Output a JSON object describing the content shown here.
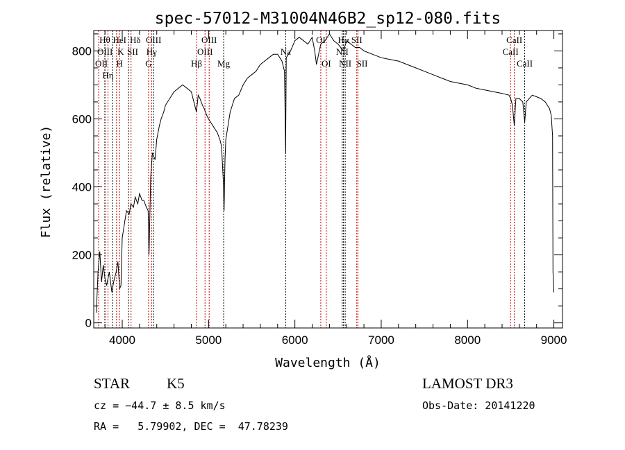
{
  "chart_data": {
    "type": "line",
    "title": "spec-57012-M31004N46B2_sp12-080.fits",
    "xlabel": "Wavelength (Å)",
    "ylabel": "Flux (relative)",
    "xlim": [
      3670,
      9100
    ],
    "ylim": [
      -15,
      860
    ],
    "xticks": [
      4000,
      5000,
      6000,
      7000,
      8000,
      9000
    ],
    "yticks": [
      0,
      200,
      400,
      600,
      800
    ],
    "grid": false,
    "series": [
      {
        "name": "flux",
        "x": [
          3700,
          3720,
          3740,
          3760,
          3780,
          3800,
          3820,
          3850,
          3880,
          3900,
          3930,
          3950,
          3970,
          3985,
          4000,
          4030,
          4050,
          4080,
          4100,
          4130,
          4150,
          4180,
          4200,
          4230,
          4250,
          4280,
          4300,
          4310,
          4330,
          4350,
          4380,
          4400,
          4430,
          4450,
          4480,
          4500,
          4550,
          4600,
          4650,
          4700,
          4750,
          4800,
          4830,
          4860,
          4880,
          4900,
          4930,
          4950,
          4980,
          5000,
          5050,
          5100,
          5130,
          5150,
          5170,
          5180,
          5190,
          5200,
          5250,
          5300,
          5350,
          5400,
          5450,
          5500,
          5550,
          5600,
          5650,
          5700,
          5750,
          5800,
          5850,
          5880,
          5893,
          5900,
          5950,
          6000,
          6050,
          6100,
          6150,
          6200,
          6230,
          6250,
          6300,
          6350,
          6400,
          6450,
          6500,
          6563,
          6600,
          6650,
          6700,
          6750,
          6800,
          6900,
          7000,
          7100,
          7200,
          7300,
          7400,
          7500,
          7600,
          7700,
          7800,
          7900,
          8000,
          8100,
          8200,
          8300,
          8400,
          8480,
          8500,
          8520,
          8542,
          8560,
          8600,
          8640,
          8662,
          8680,
          8750,
          8800,
          8850,
          8900,
          8950,
          8970,
          8985,
          8990,
          9000
        ],
        "y": [
          30,
          150,
          210,
          120,
          170,
          130,
          110,
          150,
          90,
          120,
          150,
          180,
          100,
          110,
          250,
          300,
          330,
          320,
          350,
          340,
          370,
          350,
          380,
          360,
          360,
          340,
          330,
          200,
          430,
          500,
          480,
          540,
          580,
          600,
          620,
          640,
          660,
          680,
          690,
          700,
          690,
          680,
          650,
          620,
          670,
          660,
          640,
          630,
          610,
          600,
          580,
          560,
          540,
          520,
          420,
          330,
          480,
          540,
          620,
          660,
          670,
          700,
          720,
          730,
          740,
          760,
          770,
          780,
          790,
          790,
          770,
          740,
          500,
          780,
          800,
          830,
          840,
          830,
          820,
          840,
          800,
          760,
          820,
          830,
          850,
          830,
          820,
          800,
          830,
          820,
          810,
          810,
          800,
          790,
          780,
          775,
          770,
          760,
          750,
          740,
          730,
          720,
          710,
          705,
          700,
          690,
          685,
          680,
          675,
          670,
          660,
          640,
          580,
          660,
          660,
          650,
          590,
          650,
          670,
          665,
          660,
          650,
          630,
          610,
          550,
          150,
          90
        ]
      }
    ],
    "line_markers": [
      {
        "label": "OII",
        "wave": 3727,
        "color": "#cc0000",
        "row": 3
      },
      {
        "label": "Hθ",
        "wave": 3798,
        "color": "#cc0000",
        "row": 1
      },
      {
        "label": "OIII",
        "wave": 3800,
        "color": "#000000",
        "row": 3
      },
      {
        "label": "Hη",
        "wave": 3835,
        "color": "#cc0000",
        "row": 3
      },
      {
        "label": "HeI",
        "wave": 3889,
        "color": "#000000",
        "row": 2
      },
      {
        "label": "K",
        "wave": 3934,
        "color": "#cc0000",
        "row": 1
      },
      {
        "label": "H",
        "wave": 3969,
        "color": "#cc0000",
        "row": 3
      },
      {
        "label": "SII",
        "wave": 4072,
        "color": "#000000",
        "row": 2
      },
      {
        "label": "Hδ",
        "wave": 4102,
        "color": "#cc0000",
        "row": 1
      },
      {
        "label": "G",
        "wave": 4305,
        "color": "#cc0000",
        "row": 3
      },
      {
        "label": "Hγ",
        "wave": 4340,
        "color": "#cc0000",
        "row": 2
      },
      {
        "label": "OIII",
        "wave": 4363,
        "color": "#000000",
        "row": 1
      },
      {
        "label": "Hβ",
        "wave": 4861,
        "color": "#cc0000",
        "row": 3
      },
      {
        "label": "OIII",
        "wave": 4959,
        "color": "#cc0000",
        "row": 2
      },
      {
        "label": "OIII",
        "wave": 5007,
        "color": "#cc0000",
        "row": 1
      },
      {
        "label": "Mg",
        "wave": 5175,
        "color": "#000000",
        "row": 3
      },
      {
        "label": "Na",
        "wave": 5893,
        "color": "#000000",
        "row": 2
      },
      {
        "label": "OI",
        "wave": 6300,
        "color": "#cc0000",
        "row": 1
      },
      {
        "label": "OI",
        "wave": 6364,
        "color": "#cc0000",
        "row": 3
      },
      {
        "label": "NII",
        "wave": 6548,
        "color": "#000000",
        "row": 2
      },
      {
        "label": "Hα",
        "wave": 6563,
        "color": "#000000",
        "row": 1
      },
      {
        "label": "NII",
        "wave": 6583,
        "color": "#000000",
        "row": 3
      },
      {
        "label": "SII",
        "wave": 6717,
        "color": "#cc0000",
        "row": 1
      },
      {
        "label": "SII",
        "wave": 6731,
        "color": "#cc0000",
        "row": 3
      },
      {
        "label": "CaII",
        "wave": 8498,
        "color": "#cc0000",
        "row": 2
      },
      {
        "label": "CaII",
        "wave": 8542,
        "color": "#cc0000",
        "row": 1
      },
      {
        "label": "CaII",
        "wave": 8662,
        "color": "#000000",
        "row": 3
      }
    ]
  },
  "info": {
    "class": "STAR",
    "subclass": "K5",
    "cz": "cz = −44.7 ± 8.5 km/s",
    "radec": "RA =   5.79902, DEC =  47.78239",
    "survey": "LAMOST DR3",
    "obsdate": "Obs-Date: 20141220"
  }
}
